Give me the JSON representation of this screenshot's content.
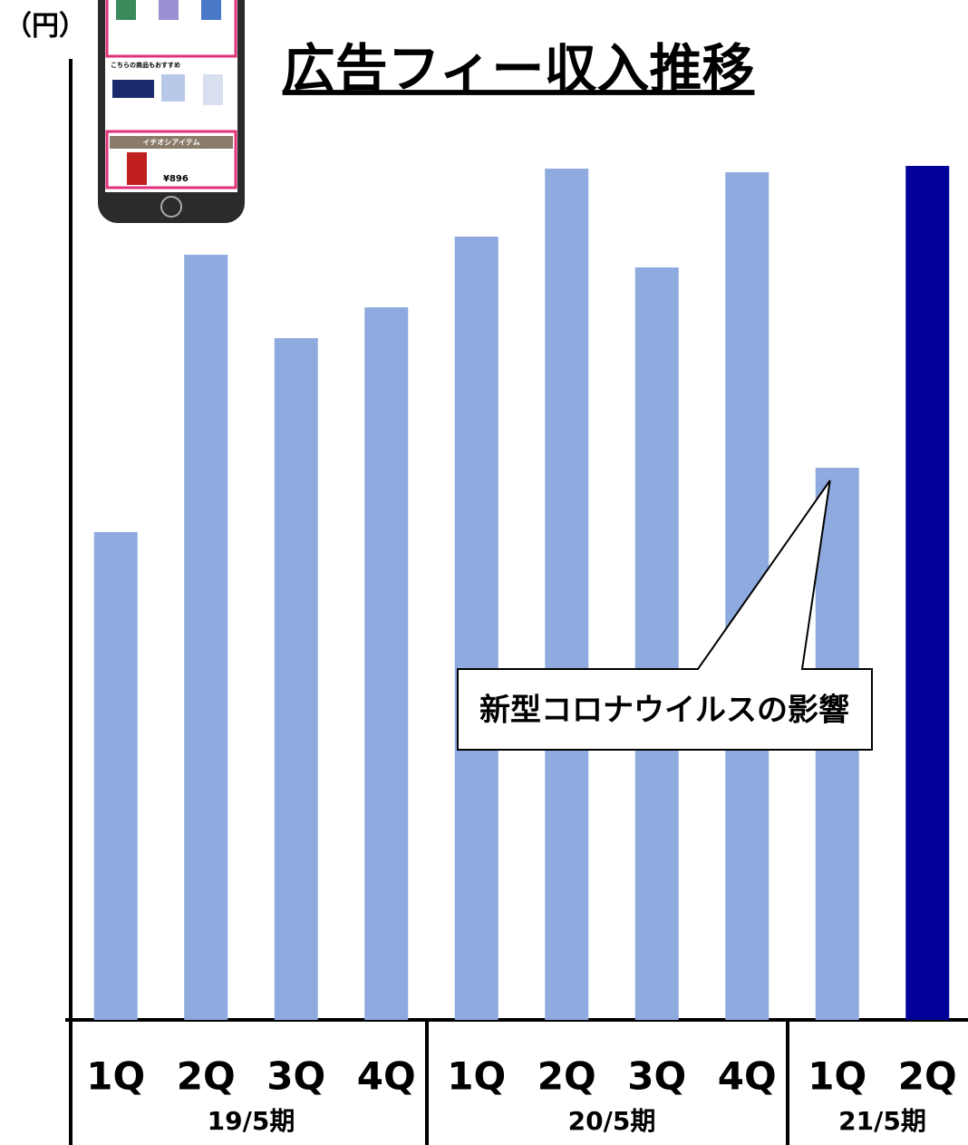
{
  "chart_data": {
    "type": "bar",
    "title": "広告フィー収入推移",
    "unit_label": "（円）",
    "groups": [
      {
        "label": "19/5期",
        "categories": [
          "1Q",
          "2Q",
          "3Q",
          "4Q"
        ]
      },
      {
        "label": "20/5期",
        "categories": [
          "1Q",
          "2Q",
          "3Q",
          "4Q"
        ]
      },
      {
        "label": "21/5期",
        "categories": [
          "1Q",
          "2Q"
        ]
      }
    ],
    "values": [
      538,
      844,
      752,
      786,
      864,
      939,
      830,
      935,
      609,
      942
    ],
    "colors": [
      "#8eaadf",
      "#8eaadf",
      "#8eaadf",
      "#8eaadf",
      "#8eaadf",
      "#8eaadf",
      "#8eaadf",
      "#8eaadf",
      "#8eaadf",
      "#000099"
    ],
    "ylim": [
      0,
      1060
    ],
    "annotation": "新型コロナウイルスの影響",
    "phone_mockup": {
      "section": "こちらの商品もおすすめ",
      "featured": "イチオシアイテム",
      "price": "¥896"
    }
  }
}
